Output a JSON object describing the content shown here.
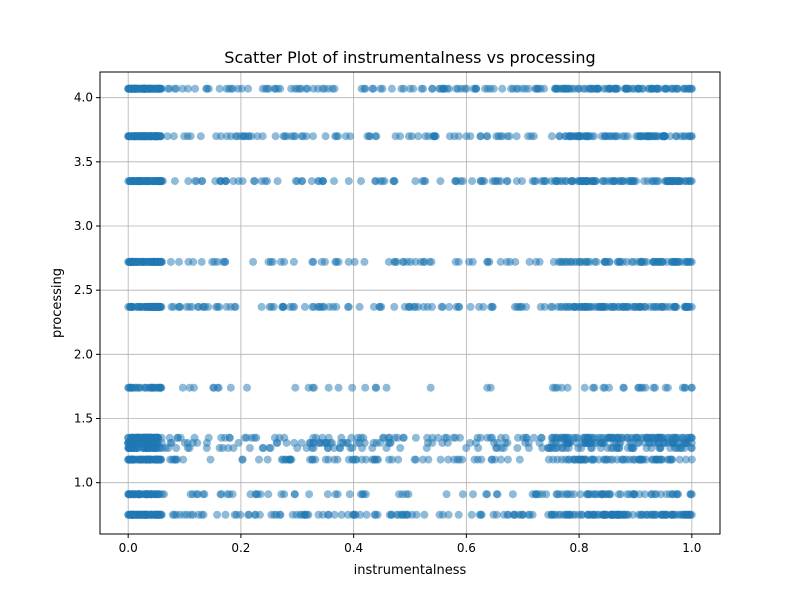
{
  "chart_data": {
    "type": "scatter",
    "title": "Scatter Plot of instrumentalness vs processing",
    "xlabel": "instrumentalness",
    "ylabel": "processing",
    "xlim": [
      -0.05,
      1.05
    ],
    "ylim": [
      0.6,
      4.2
    ],
    "xticks": [
      0.0,
      0.2,
      0.4,
      0.6,
      0.8,
      1.0
    ],
    "xtick_labels": [
      "0.0",
      "0.2",
      "0.4",
      "0.6",
      "0.8",
      "1.0"
    ],
    "yticks": [
      1.0,
      1.5,
      2.0,
      2.5,
      3.0,
      3.5,
      4.0
    ],
    "ytick_labels": [
      "1.0",
      "1.5",
      "2.0",
      "2.5",
      "3.0",
      "3.5",
      "4.0"
    ],
    "grid": true,
    "point_color": "#1f77b4",
    "point_alpha": 0.5,
    "x_range": [
      0.0,
      1.0
    ],
    "y_levels": [
      0.75,
      0.91,
      1.18,
      1.27,
      1.31,
      1.35,
      1.74,
      2.37,
      2.72,
      3.35,
      3.7,
      4.07
    ],
    "level_density": [
      1.0,
      0.55,
      0.7,
      0.45,
      0.6,
      0.8,
      0.3,
      0.85,
      0.7,
      0.9,
      0.9,
      1.0
    ]
  }
}
